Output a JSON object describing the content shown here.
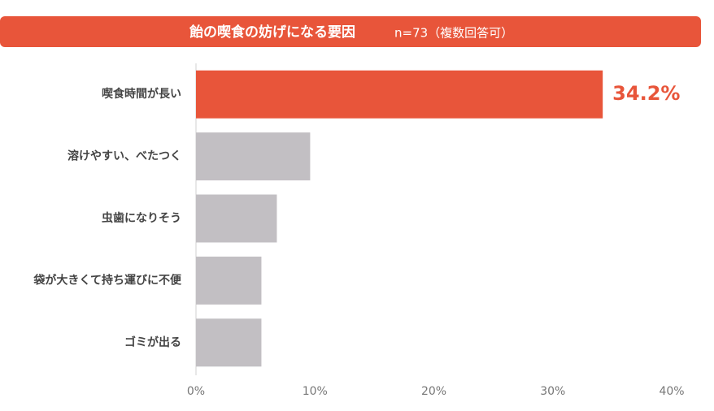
{
  "chart_data": {
    "type": "bar",
    "orientation": "horizontal",
    "title": "飴の喫食の妨げになる要因",
    "subtitle": "n=73（複数回答可）",
    "categories": [
      "喫食時間が長い",
      "溶けやすい、べたつく",
      "虫歯になりそう",
      "袋が大きくて持ち運びに不便",
      "ゴミが出る"
    ],
    "values": [
      34.2,
      9.6,
      6.8,
      5.5,
      5.5
    ],
    "value_labels": [
      "34.2%",
      null,
      null,
      null,
      null
    ],
    "colors": [
      "#e8553a",
      "#c2bfc3",
      "#c2bfc3",
      "#c2bfc3",
      "#c2bfc3"
    ],
    "xlim": [
      0,
      40
    ],
    "xticks": [
      {
        "value": 0,
        "label": "0%"
      },
      {
        "value": 10,
        "label": "10%"
      },
      {
        "value": 20,
        "label": "20%"
      },
      {
        "value": 30,
        "label": "30%"
      },
      {
        "value": 40,
        "label": "40%"
      }
    ],
    "title_color": "#e8553a"
  }
}
